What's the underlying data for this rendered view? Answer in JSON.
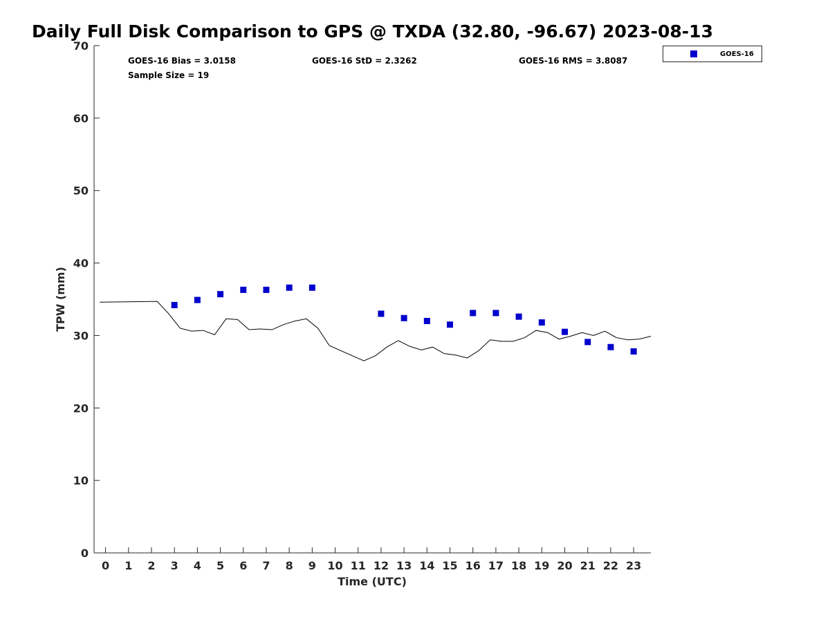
{
  "chart_data": {
    "type": "scatter",
    "title": "Daily Full Disk Comparison to GPS @ TXDA (32.80, -96.67) 2023-08-13",
    "xlabel": "Time (UTC)",
    "ylabel": "TPW (mm)",
    "xlim": [
      -0.5,
      23.75
    ],
    "ylim": [
      0,
      70
    ],
    "x_ticks": [
      "0",
      "1",
      "2",
      "3",
      "4",
      "5",
      "6",
      "7",
      "8",
      "9",
      "10",
      "11",
      "12",
      "13",
      "14",
      "15",
      "16",
      "17",
      "18",
      "19",
      "20",
      "21",
      "22",
      "23"
    ],
    "y_ticks": [
      "0",
      "10",
      "20",
      "30",
      "40",
      "50",
      "60",
      "70"
    ],
    "grid": false,
    "legend_position": "top-right",
    "annotations": {
      "bias": "GOES-16 Bias = 3.0158",
      "std": "GOES-16 StD = 2.3262",
      "rms": "GOES-16 RMS = 3.8087",
      "sample_size": "Sample Size = 19"
    },
    "series": [
      {
        "name": "GOES-16",
        "kind": "scatter",
        "color": "#0000cc",
        "marker": "square",
        "points": [
          [
            3,
            34.2
          ],
          [
            4,
            34.9
          ],
          [
            5,
            35.7
          ],
          [
            6,
            36.3
          ],
          [
            7,
            36.3
          ],
          [
            8,
            36.6
          ],
          [
            9,
            36.6
          ],
          [
            12,
            33.0
          ],
          [
            13,
            32.4
          ],
          [
            14,
            32.0
          ],
          [
            15,
            31.5
          ],
          [
            16,
            33.1
          ],
          [
            17,
            33.1
          ],
          [
            18,
            32.6
          ],
          [
            19,
            31.8
          ],
          [
            20,
            30.5
          ],
          [
            21,
            29.1
          ],
          [
            22,
            28.4
          ],
          [
            23,
            27.8
          ]
        ]
      },
      {
        "kind": "line",
        "color": "#000000",
        "points": [
          [
            -0.25,
            34.6
          ],
          [
            2.25,
            34.7
          ],
          [
            2.75,
            33.0
          ],
          [
            3.25,
            31.0
          ],
          [
            3.75,
            30.6
          ],
          [
            4.25,
            30.7
          ],
          [
            4.75,
            30.1
          ],
          [
            5.25,
            32.3
          ],
          [
            5.75,
            32.2
          ],
          [
            6.25,
            30.8
          ],
          [
            6.75,
            30.9
          ],
          [
            7.25,
            30.8
          ],
          [
            7.75,
            31.5
          ],
          [
            8.25,
            32.0
          ],
          [
            8.75,
            32.3
          ],
          [
            9.25,
            31.0
          ],
          [
            9.75,
            28.6
          ],
          [
            10.25,
            27.9
          ],
          [
            10.75,
            27.2
          ],
          [
            11.25,
            26.5
          ],
          [
            11.75,
            27.2
          ],
          [
            12.25,
            28.4
          ],
          [
            12.75,
            29.3
          ],
          [
            13.25,
            28.5
          ],
          [
            13.75,
            28.0
          ],
          [
            14.25,
            28.4
          ],
          [
            14.75,
            27.5
          ],
          [
            15.25,
            27.3
          ],
          [
            15.75,
            26.9
          ],
          [
            16.25,
            27.9
          ],
          [
            16.75,
            29.4
          ],
          [
            17.25,
            29.2
          ],
          [
            17.75,
            29.2
          ],
          [
            18.25,
            29.7
          ],
          [
            18.75,
            30.7
          ],
          [
            19.25,
            30.4
          ],
          [
            19.75,
            29.5
          ],
          [
            20.25,
            29.9
          ],
          [
            20.75,
            30.4
          ],
          [
            21.25,
            30.0
          ],
          [
            21.75,
            30.6
          ],
          [
            22.25,
            29.7
          ],
          [
            22.75,
            29.4
          ],
          [
            23.25,
            29.5
          ],
          [
            23.75,
            29.9
          ]
        ]
      }
    ]
  }
}
